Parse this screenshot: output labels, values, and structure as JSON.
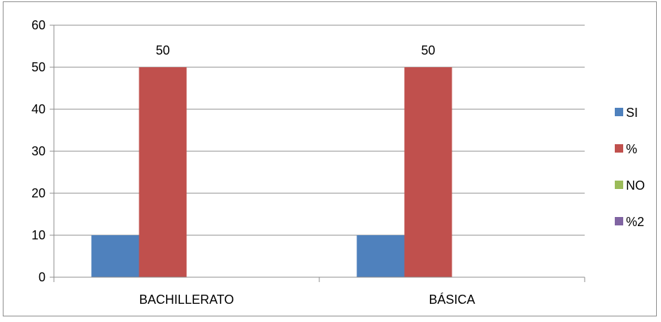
{
  "chart_data": {
    "type": "bar",
    "title": "",
    "xlabel": "",
    "ylabel": "",
    "categories": [
      "BACHILLERATO",
      "BÁSICA"
    ],
    "series": [
      {
        "name": "SI",
        "values": [
          10,
          10
        ],
        "color": "#4f81bd"
      },
      {
        "name": "%",
        "values": [
          50,
          50
        ],
        "color": "#c0504d",
        "data_labels": [
          "50",
          "50"
        ]
      },
      {
        "name": "NO",
        "values": [
          0,
          0
        ],
        "color": "#9bbb59"
      },
      {
        "name": "%2",
        "values": [
          0,
          0
        ],
        "color": "#8064a2"
      }
    ],
    "ylim": [
      0,
      60
    ],
    "yticks": [
      "0",
      "10",
      "20",
      "30",
      "40",
      "50",
      "60"
    ],
    "grid": true,
    "legend_position": "right"
  }
}
